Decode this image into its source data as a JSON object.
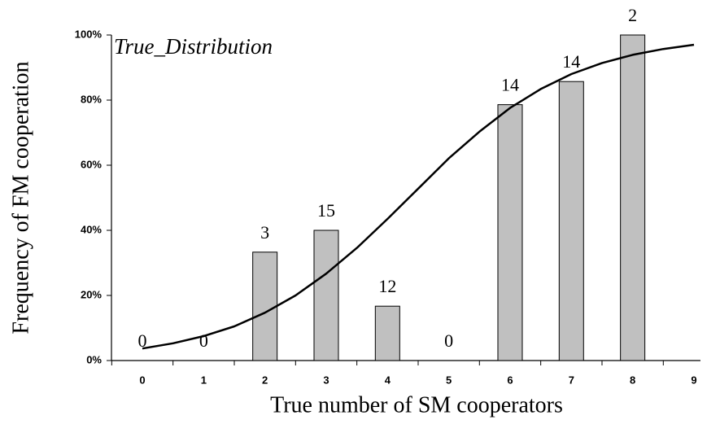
{
  "chart_data": {
    "type": "bar",
    "annotation": "True_Distribution",
    "xlabel": "True number of SM cooperators",
    "ylabel": "Frequency of FM cooperation",
    "categories": [
      "0",
      "1",
      "2",
      "3",
      "4",
      "5",
      "6",
      "7",
      "8",
      "9"
    ],
    "values": [
      0,
      0,
      33.3,
      40,
      16.7,
      0,
      78.6,
      85.7,
      100,
      null
    ],
    "counts": [
      0,
      0,
      3,
      15,
      12,
      0,
      14,
      14,
      2,
      null
    ],
    "color": "#c0c0c0",
    "ylim": [
      0,
      100
    ],
    "yticks": [
      {
        "value": 0,
        "label": "0%"
      },
      {
        "value": 20,
        "label": "20%"
      },
      {
        "value": 40,
        "label": "40%"
      },
      {
        "value": 60,
        "label": "60%"
      },
      {
        "value": 80,
        "label": "80%"
      },
      {
        "value": 100,
        "label": "100%"
      }
    ],
    "fit": {
      "type": "line",
      "color": "#000000",
      "x": [
        0,
        0.5,
        1,
        1.5,
        2,
        2.5,
        3,
        3.5,
        4,
        4.5,
        5,
        5.5,
        6,
        6.5,
        7,
        7.5,
        8,
        8.5,
        9
      ],
      "values": [
        3.7,
        5.3,
        7.5,
        10.5,
        14.7,
        20.0,
        26.7,
        34.6,
        43.5,
        52.8,
        62.1,
        70.3,
        77.6,
        83.4,
        88.0,
        91.4,
        93.9,
        95.7,
        97.0
      ]
    }
  }
}
